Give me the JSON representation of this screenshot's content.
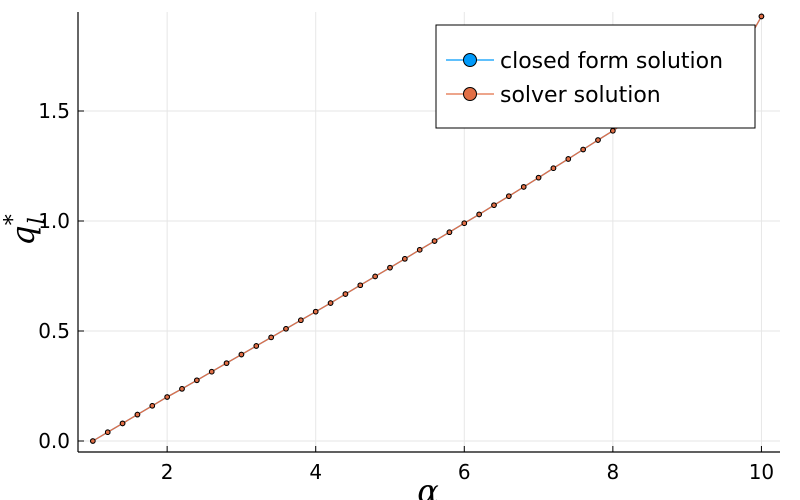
{
  "chart_data": {
    "type": "line",
    "title": "",
    "xlabel": "α",
    "ylabel": {
      "base": "q",
      "subscript": "l",
      "superscript": "*"
    },
    "xlim": [
      0.8,
      10.25
    ],
    "ylim": [
      -0.05,
      1.95
    ],
    "xticks": [
      2,
      4,
      6,
      8,
      10
    ],
    "xtick_labels": [
      "2",
      "4",
      "6",
      "8",
      "10"
    ],
    "yticks": [
      0.0,
      0.5,
      1.0,
      1.5
    ],
    "ytick_labels": [
      "0.0",
      "0.5",
      "1.0",
      "1.5"
    ],
    "grid": true,
    "legend_position": "top-right",
    "series": [
      {
        "name": "closed form solution",
        "color": "#009AFA",
        "x": [
          1.0,
          1.2,
          1.4,
          1.6,
          1.8,
          2.0,
          2.2,
          2.4,
          2.6,
          2.8,
          3.0,
          3.2,
          3.4,
          3.6,
          3.8,
          4.0,
          4.2,
          4.4,
          4.6,
          4.8,
          5.0,
          5.2,
          5.4,
          5.6,
          5.8,
          6.0,
          6.2,
          6.4,
          6.6,
          6.8,
          7.0,
          7.2,
          7.4,
          7.6,
          7.8,
          8.0,
          8.2,
          8.4,
          8.6,
          8.8,
          9.0,
          9.2,
          9.4,
          9.6,
          9.8,
          10.0
        ],
        "y": [
          0.0,
          0.04,
          0.08,
          0.12,
          0.16,
          0.2,
          0.237,
          0.276,
          0.315,
          0.354,
          0.393,
          0.432,
          0.471,
          0.51,
          0.549,
          0.588,
          0.627,
          0.668,
          0.708,
          0.748,
          0.788,
          0.828,
          0.869,
          0.909,
          0.949,
          0.99,
          1.03,
          1.072,
          1.113,
          1.155,
          1.197,
          1.24,
          1.282,
          1.325,
          1.368,
          1.41,
          1.455,
          1.5,
          1.543,
          1.587,
          1.63,
          1.675,
          1.72,
          1.765,
          1.81,
          1.93
        ]
      },
      {
        "name": "solver solution",
        "color": "#E26F46",
        "x": [
          1.0,
          1.2,
          1.4,
          1.6,
          1.8,
          2.0,
          2.2,
          2.4,
          2.6,
          2.8,
          3.0,
          3.2,
          3.4,
          3.6,
          3.8,
          4.0,
          4.2,
          4.4,
          4.6,
          4.8,
          5.0,
          5.2,
          5.4,
          5.6,
          5.8,
          6.0,
          6.2,
          6.4,
          6.6,
          6.8,
          7.0,
          7.2,
          7.4,
          7.6,
          7.8,
          8.0,
          8.2,
          8.4,
          8.6,
          8.8,
          9.0,
          9.2,
          9.4,
          9.6,
          9.8,
          10.0
        ],
        "y": [
          0.0,
          0.04,
          0.08,
          0.12,
          0.16,
          0.2,
          0.237,
          0.276,
          0.315,
          0.354,
          0.393,
          0.432,
          0.471,
          0.51,
          0.549,
          0.588,
          0.627,
          0.668,
          0.708,
          0.748,
          0.788,
          0.828,
          0.869,
          0.909,
          0.949,
          0.99,
          1.03,
          1.072,
          1.113,
          1.155,
          1.197,
          1.24,
          1.282,
          1.325,
          1.368,
          1.41,
          1.455,
          1.5,
          1.543,
          1.587,
          1.63,
          1.675,
          1.72,
          1.765,
          1.81,
          1.93
        ]
      }
    ]
  }
}
